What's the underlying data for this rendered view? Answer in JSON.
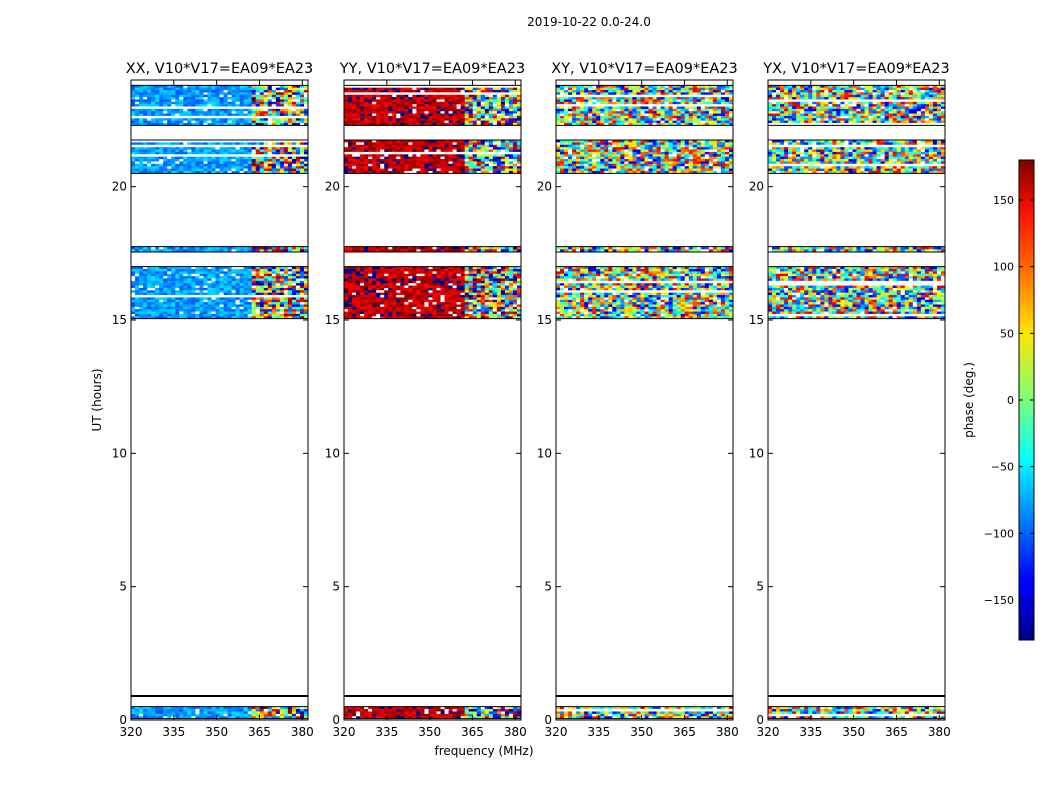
{
  "figure": {
    "suptitle": "2019-10-22 0.0-24.0",
    "xlabel": "frequency (MHz)",
    "ylabel": "UT (hours)",
    "colorbar_label": "phase (deg.)"
  },
  "chart_data": {
    "type": "heatmap",
    "title": "2019-10-22 0.0-24.0",
    "xlabel": "frequency (MHz)",
    "ylabel": "UT (hours)",
    "xlim": [
      320,
      382
    ],
    "ylim": [
      0,
      24
    ],
    "x_ticks": [
      320,
      335,
      350,
      365,
      380
    ],
    "y_ticks": [
      0,
      5,
      10,
      15,
      20
    ],
    "colorbar": {
      "label": "phase (deg.)",
      "range": [
        -180,
        180
      ],
      "ticks": [
        150,
        100,
        50,
        0,
        -50,
        -100,
        -150
      ],
      "tick_labels": [
        "150",
        "100",
        "50",
        "0",
        "−50",
        "−100",
        "−150"
      ],
      "colormap": "jet"
    },
    "data_time_ranges_hours": [
      [
        0.05,
        0.5
      ],
      [
        15.05,
        17.0
      ],
      [
        17.55,
        17.75
      ],
      [
        20.5,
        21.75
      ],
      [
        22.3,
        23.8
      ]
    ],
    "flagged_time_hours": [
      0.9
    ],
    "panels": [
      {
        "name": "xx",
        "title": "XX, V10*V17=EA09*EA23",
        "base_phase_deg": -80,
        "noise": "low"
      },
      {
        "name": "yy",
        "title": "YY, V10*V17=EA09*EA23",
        "base_phase_deg": 160,
        "noise": "low"
      },
      {
        "name": "xy",
        "title": "XY, V10*V17=EA09*EA23",
        "base_phase_deg": 0,
        "noise": "high"
      },
      {
        "name": "yx",
        "title": "YX, V10*V17=EA09*EA23",
        "base_phase_deg": 0,
        "noise": "high"
      }
    ]
  }
}
